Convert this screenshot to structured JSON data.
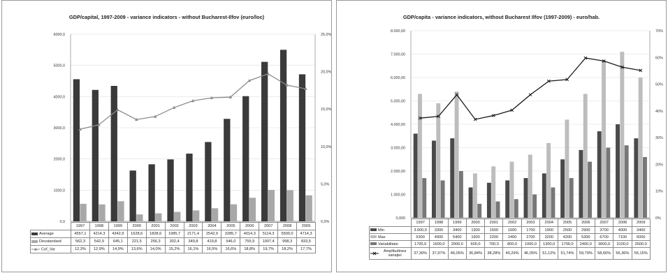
{
  "chart_data": [
    {
      "type": "bar",
      "title": "GDP/capital,  1997-2009 - variance indicators - without Bucharest-Ilfov (euro/loc)",
      "categories": [
        "1997",
        "1998",
        "1999",
        "2000",
        "2001",
        "2002",
        "2003",
        "2004",
        "2005",
        "2006",
        "2007",
        "2008",
        "2009"
      ],
      "y_left": {
        "min": 0,
        "max": 6000,
        "step": 1000,
        "tick_labels": [
          "0,0",
          "1000,0",
          "2000,0",
          "3000,0",
          "4000,0",
          "5000,0",
          "6000,0"
        ]
      },
      "y_right": {
        "min": 0,
        "max": 25,
        "step": 5,
        "tick_labels": [
          "0,0%",
          "5,0%",
          "10,0%",
          "15,0%",
          "20,0%",
          "25,0%"
        ]
      },
      "series": [
        {
          "name": "Average",
          "kind": "bar",
          "axis": "left",
          "color": "#3a3a3a",
          "values": [
            4557.1,
            4214.3,
            4342.9,
            1628.6,
            1828.6,
            1985.7,
            2171.4,
            2542.9,
            3285.7,
            4014.3,
            5114.3,
            5500.0,
            4714.3
          ],
          "labels": [
            "4557,1",
            "4214,3",
            "4342,9",
            "1628,6",
            "1828,6",
            "1985,7",
            "2171,4",
            "2542,9",
            "3285,7",
            "4014,3",
            "5114,3",
            "5500,0",
            "4714,3"
          ]
        },
        {
          "name": "Devstandard",
          "kind": "bar",
          "axis": "left",
          "color": "#a8a8a8",
          "values": [
            562.3,
            542.9,
            645.1,
            221.5,
            256.3,
            302.4,
            349.8,
            419.8,
            546.0,
            755.9,
            1007.4,
            998.3,
            833.5
          ],
          "labels": [
            "562,3",
            "542,9",
            "645,1",
            "221,5",
            "256,3",
            "302,4",
            "349,8",
            "419,8",
            "546,0",
            "755,9",
            "1007,4",
            "998,3",
            "833,5"
          ]
        },
        {
          "name": "Cof_Var",
          "kind": "line",
          "axis": "right",
          "color": "#8c8c8c",
          "values": [
            12.3,
            12.9,
            14.9,
            13.6,
            14.0,
            15.2,
            16.1,
            16.5,
            16.6,
            18.8,
            19.7,
            18.2,
            17.7
          ],
          "labels": [
            "12,3%",
            "12,9%",
            "14,9%",
            "13,6%",
            "14,0%",
            "15,2%",
            "16,1%",
            "16,5%",
            "16,6%",
            "18,8%",
            "19,7%",
            "18,2%",
            "17,7%"
          ]
        }
      ]
    },
    {
      "type": "bar",
      "title": "GDP/capita - variance indicators, without Bucharest Ilfov (1997-2009) - euro/hab.",
      "categories": [
        "1997",
        "1998",
        "1999",
        "2000",
        "2001",
        "2002",
        "2003",
        "2004",
        "2005",
        "2006",
        "2007",
        "2008",
        "2009"
      ],
      "y_left": {
        "min": 0,
        "max": 8000,
        "step": 1000,
        "tick_labels": [
          "0,000",
          "1.000,00",
          "2.000,00",
          "3.000,00",
          "4.000,00",
          "5.000,00",
          "6.000,00",
          "7.000,00",
          "8.000,00"
        ]
      },
      "y_right": {
        "min": 0,
        "max": 70,
        "step": 10,
        "tick_labels": [
          "0%",
          "10%",
          "20%",
          "30%",
          "40%",
          "50%",
          "60%",
          "70%"
        ]
      },
      "series": [
        {
          "name": "Min",
          "kind": "bar",
          "axis": "left",
          "color": "#4a4a4a",
          "values": [
            3600,
            3300,
            3400,
            1300,
            1500,
            1600,
            1700,
            1900,
            2500,
            2900,
            3700,
            4000,
            3400
          ],
          "labels": [
            "3.600,0",
            "3300",
            "3400",
            "1300",
            "1500",
            "1600",
            "1700",
            "1900",
            "2500",
            "2900",
            "3700",
            "4000",
            "3400"
          ]
        },
        {
          "name": "Max",
          "kind": "bar",
          "axis": "left",
          "color": "#bdbdbd",
          "values": [
            5300,
            4900,
            5400,
            1900,
            2200,
            2400,
            2700,
            3200,
            4200,
            5300,
            6700,
            7100,
            6000
          ],
          "labels": [
            "5300",
            "4900",
            "5400",
            "1900",
            "2200",
            "2400",
            "2700",
            "3200",
            "4200",
            "5300",
            "6700",
            "7100",
            "6000"
          ]
        },
        {
          "name": "Variabilitate",
          "kind": "bar",
          "axis": "left",
          "color": "#777777",
          "values": [
            1700,
            1600,
            2000,
            600,
            700,
            800,
            1000,
            1300,
            1700,
            2400,
            3000,
            3100,
            2600
          ],
          "labels": [
            "1700,0",
            "1600,0",
            "2000,0",
            "600,0",
            "700,0",
            "800,0",
            "1000,0",
            "1300,0",
            "1700,0",
            "2400,0",
            "3000,0",
            "3100,0",
            "2600,0"
          ]
        },
        {
          "name": "Amplitudinea variaţiei",
          "kind": "line",
          "axis": "right",
          "color": "#1a1a1a",
          "values": [
            37.3,
            37.97,
            46.05,
            36.84,
            38.28,
            40.29,
            46.05,
            51.12,
            51.74,
            59.79,
            58.66,
            56.36,
            55.15
          ],
          "labels": [
            "37,30%",
            "37,97%",
            "46,05%",
            "36,84%",
            "38,28%",
            "40,29%",
            "46,05%",
            "51,12%",
            "51,74%",
            "59,79%",
            "58,66%",
            "56,36%",
            "55,15%"
          ]
        }
      ]
    }
  ]
}
